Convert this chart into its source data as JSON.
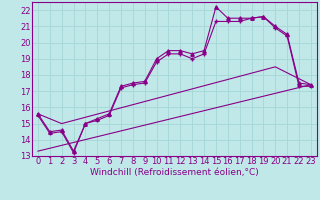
{
  "xlabel": "Windchill (Refroidissement éolien,°C)",
  "bg_color": "#c0e8e8",
  "grid_color": "#a8d8d8",
  "line_color": "#880088",
  "xlim": [
    -0.5,
    23.5
  ],
  "ylim": [
    13.0,
    22.5
  ],
  "xticks": [
    0,
    1,
    2,
    3,
    4,
    5,
    6,
    7,
    8,
    9,
    10,
    11,
    12,
    13,
    14,
    15,
    16,
    17,
    18,
    19,
    20,
    21,
    22,
    23
  ],
  "yticks": [
    13,
    14,
    15,
    16,
    17,
    18,
    19,
    20,
    21,
    22
  ],
  "line1_x": [
    0,
    1,
    2,
    3,
    4,
    5,
    6,
    7,
    8,
    9,
    10,
    11,
    12,
    13,
    14,
    15,
    16,
    17,
    18,
    19,
    20,
    21,
    22,
    23
  ],
  "line1_y": [
    15.6,
    14.5,
    14.6,
    13.3,
    15.0,
    15.3,
    15.6,
    17.3,
    17.5,
    17.6,
    19.0,
    19.5,
    19.5,
    19.3,
    19.5,
    22.2,
    21.5,
    21.5,
    21.5,
    21.6,
    21.0,
    20.5,
    17.5,
    17.4
  ],
  "line2_x": [
    0,
    1,
    2,
    3,
    4,
    5,
    6,
    7,
    8,
    9,
    10,
    11,
    12,
    13,
    14,
    15,
    16,
    17,
    18,
    19,
    20,
    21,
    22,
    23
  ],
  "line2_y": [
    15.5,
    14.4,
    14.5,
    13.2,
    15.0,
    15.2,
    15.5,
    17.2,
    17.4,
    17.5,
    18.8,
    19.3,
    19.3,
    19.0,
    19.3,
    21.3,
    21.3,
    21.3,
    21.5,
    21.6,
    20.9,
    20.4,
    17.3,
    17.3
  ],
  "line3_x": [
    0,
    2,
    20,
    23
  ],
  "line3_y": [
    15.6,
    15.0,
    18.5,
    17.4
  ],
  "line4_x": [
    0,
    23
  ],
  "line4_y": [
    13.3,
    17.4
  ],
  "font_color": "#880088",
  "font_size": 6.5,
  "tick_font_size": 6
}
